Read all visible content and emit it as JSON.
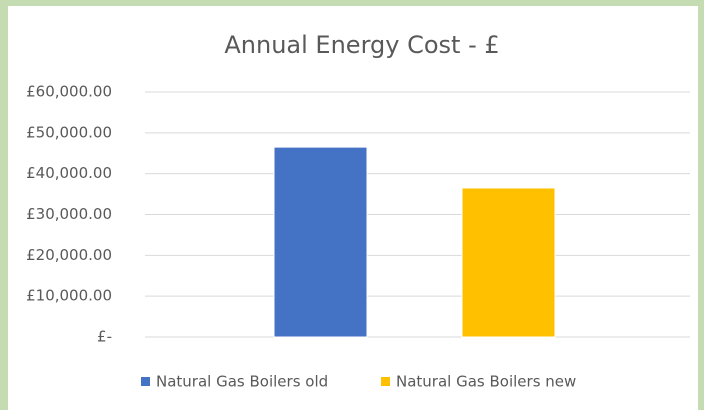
{
  "chart_data": {
    "type": "bar",
    "title": "Annual Energy Cost - £",
    "categories": [
      null
    ],
    "series": [
      {
        "name": "Natural Gas Boilers old",
        "color": "#4472c4",
        "values": [
          46500
        ]
      },
      {
        "name": "Natural Gas Boilers new",
        "color": "#ffc000",
        "values": [
          36500
        ]
      }
    ],
    "ylim": [
      0,
      60000
    ],
    "yticks": [
      {
        "value": 0,
        "label": "£-"
      },
      {
        "value": 10000,
        "label": "£10,000.00"
      },
      {
        "value": 20000,
        "label": "£20,000.00"
      },
      {
        "value": 30000,
        "label": "£30,000.00"
      },
      {
        "value": 40000,
        "label": "£40,000.00"
      },
      {
        "value": 50000,
        "label": "£50,000.00"
      },
      {
        "value": 60000,
        "label": "£60,000.00"
      }
    ],
    "grid": true,
    "legend": "bottom"
  }
}
